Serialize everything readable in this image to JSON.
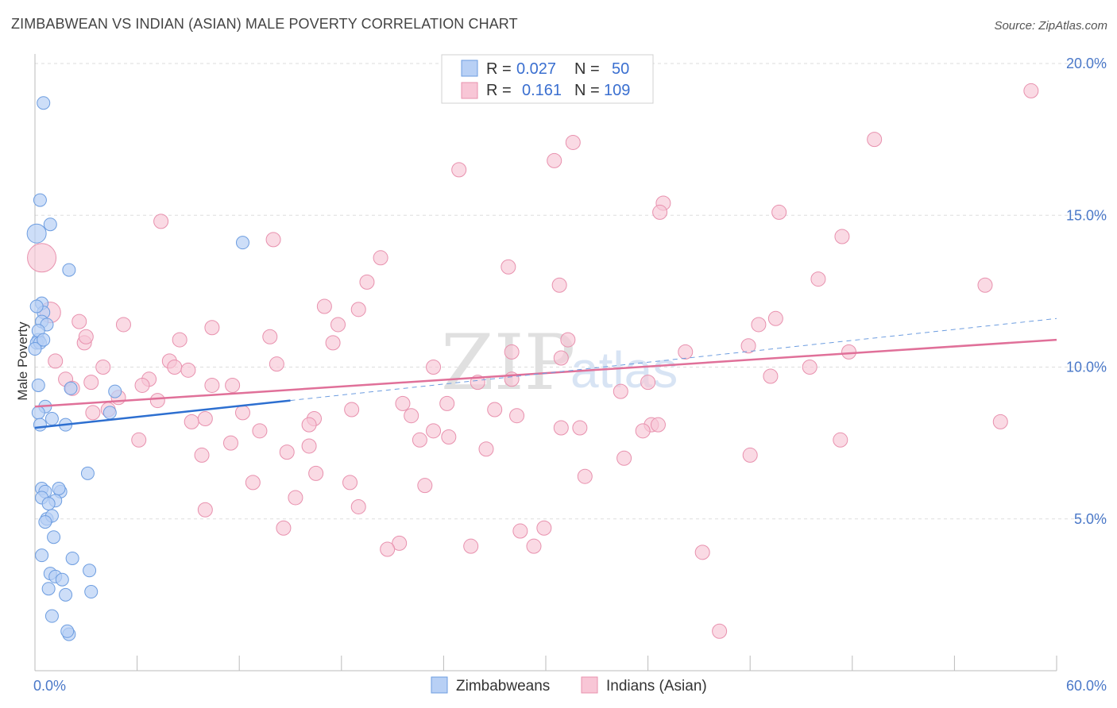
{
  "title": "ZIMBABWEAN VS INDIAN (ASIAN) MALE POVERTY CORRELATION CHART",
  "source": "Source: ZipAtlas.com",
  "watermark": {
    "zip": "ZIP",
    "atlas": "atlas"
  },
  "legend": {
    "r_label": "R =",
    "n_label": "N =",
    "rows": [
      {
        "r": "0.027",
        "n": "50",
        "fill": "#b8d0f5",
        "stroke": "#6d9de0"
      },
      {
        "r": "0.161",
        "n": "109",
        "fill": "#f8c6d6",
        "stroke": "#e891ae"
      }
    ]
  },
  "bottom_legend": [
    "Zimbabweans",
    "Indians (Asian)"
  ],
  "chart_data": {
    "type": "scatter",
    "title": "ZIMBABWEAN VS INDIAN (ASIAN) MALE POVERTY CORRELATION CHART",
    "xlabel": "",
    "ylabel": "Male Poverty",
    "xlim": [
      0,
      60
    ],
    "ylim": [
      0,
      20
    ],
    "x_tick_labels": [
      "0.0%",
      "60.0%"
    ],
    "y_ticks": [
      5,
      10,
      15,
      20
    ],
    "y_tick_labels": [
      "5.0%",
      "10.0%",
      "15.0%",
      "20.0%"
    ],
    "grid": true,
    "series": [
      {
        "name": "Zimbabweans",
        "color": "#6d9de0",
        "fill": "#b8d0f5",
        "trend_solid": [
          [
            0,
            8.0
          ],
          [
            15,
            8.9
          ]
        ],
        "trend_dashed": [
          [
            15,
            8.9
          ],
          [
            60,
            11.6
          ]
        ],
        "points": [
          [
            0.5,
            18.7
          ],
          [
            0.3,
            15.5
          ],
          [
            0.9,
            14.7
          ],
          [
            0.1,
            14.4
          ],
          [
            2.0,
            13.2
          ],
          [
            12.2,
            14.1
          ],
          [
            0.4,
            12.1
          ],
          [
            0.5,
            11.8
          ],
          [
            0.4,
            11.5
          ],
          [
            0.7,
            11.4
          ],
          [
            0.2,
            10.9
          ],
          [
            0.1,
            10.8
          ],
          [
            0.3,
            10.8
          ],
          [
            0.0,
            10.6
          ],
          [
            0.2,
            9.4
          ],
          [
            2.1,
            9.3
          ],
          [
            4.7,
            9.2
          ],
          [
            0.6,
            8.7
          ],
          [
            4.4,
            8.5
          ],
          [
            0.2,
            8.5
          ],
          [
            1.0,
            8.3
          ],
          [
            1.8,
            8.1
          ],
          [
            0.3,
            8.1
          ],
          [
            3.1,
            6.5
          ],
          [
            0.4,
            6.0
          ],
          [
            0.6,
            5.9
          ],
          [
            1.5,
            5.9
          ],
          [
            0.4,
            5.7
          ],
          [
            1.2,
            5.6
          ],
          [
            0.8,
            5.5
          ],
          [
            0.7,
            5.0
          ],
          [
            1.0,
            5.1
          ],
          [
            1.1,
            4.4
          ],
          [
            0.4,
            3.8
          ],
          [
            2.2,
            3.7
          ],
          [
            0.9,
            3.2
          ],
          [
            1.2,
            3.1
          ],
          [
            1.6,
            3.0
          ],
          [
            0.8,
            2.7
          ],
          [
            1.8,
            2.5
          ],
          [
            1.0,
            1.8
          ],
          [
            3.2,
            3.3
          ],
          [
            3.3,
            2.6
          ],
          [
            2.0,
            1.2
          ],
          [
            1.9,
            1.3
          ],
          [
            0.1,
            12.0
          ],
          [
            0.2,
            11.2
          ],
          [
            0.5,
            10.9
          ],
          [
            1.4,
            6.0
          ],
          [
            0.6,
            4.9
          ]
        ]
      },
      {
        "name": "Indians (Asian)",
        "color": "#e07099",
        "fill": "#f8c6d6",
        "trend": [
          [
            0,
            8.7
          ],
          [
            60,
            10.9
          ]
        ],
        "points": [
          [
            58.5,
            19.1
          ],
          [
            24.9,
            16.5
          ],
          [
            31.6,
            17.4
          ],
          [
            30.5,
            16.8
          ],
          [
            49.3,
            17.5
          ],
          [
            36.9,
            15.4
          ],
          [
            36.7,
            15.1
          ],
          [
            43.7,
            15.1
          ],
          [
            7.4,
            14.8
          ],
          [
            14.0,
            14.2
          ],
          [
            47.4,
            14.3
          ],
          [
            20.3,
            13.6
          ],
          [
            27.8,
            13.3
          ],
          [
            46.0,
            12.9
          ],
          [
            19.5,
            12.8
          ],
          [
            30.8,
            12.7
          ],
          [
            55.8,
            12.7
          ],
          [
            17.0,
            12.0
          ],
          [
            19.0,
            11.9
          ],
          [
            2.6,
            11.5
          ],
          [
            5.2,
            11.4
          ],
          [
            10.4,
            11.3
          ],
          [
            17.8,
            11.4
          ],
          [
            42.5,
            11.4
          ],
          [
            43.5,
            11.6
          ],
          [
            13.8,
            11.0
          ],
          [
            8.5,
            10.9
          ],
          [
            17.5,
            10.8
          ],
          [
            2.9,
            10.8
          ],
          [
            31.3,
            10.9
          ],
          [
            38.2,
            10.5
          ],
          [
            41.9,
            10.7
          ],
          [
            28.0,
            10.5
          ],
          [
            47.8,
            10.5
          ],
          [
            30.9,
            10.3
          ],
          [
            1.2,
            10.2
          ],
          [
            7.9,
            10.2
          ],
          [
            8.2,
            10.0
          ],
          [
            4.0,
            10.0
          ],
          [
            14.2,
            10.1
          ],
          [
            23.4,
            10.0
          ],
          [
            9.0,
            9.9
          ],
          [
            1.8,
            9.6
          ],
          [
            45.5,
            10.0
          ],
          [
            6.7,
            9.6
          ],
          [
            43.2,
            9.7
          ],
          [
            3.3,
            9.5
          ],
          [
            11.6,
            9.4
          ],
          [
            6.3,
            9.4
          ],
          [
            10.4,
            9.4
          ],
          [
            26.0,
            9.5
          ],
          [
            36.0,
            9.5
          ],
          [
            28.0,
            9.6
          ],
          [
            2.2,
            9.3
          ],
          [
            4.9,
            9.0
          ],
          [
            7.2,
            8.9
          ],
          [
            34.4,
            9.2
          ],
          [
            21.6,
            8.8
          ],
          [
            3.4,
            8.5
          ],
          [
            4.3,
            8.6
          ],
          [
            12.2,
            8.5
          ],
          [
            18.6,
            8.6
          ],
          [
            24.2,
            8.8
          ],
          [
            27.0,
            8.6
          ],
          [
            28.3,
            8.4
          ],
          [
            16.4,
            8.3
          ],
          [
            9.2,
            8.2
          ],
          [
            10.0,
            8.3
          ],
          [
            16.1,
            8.1
          ],
          [
            22.1,
            8.4
          ],
          [
            36.2,
            8.1
          ],
          [
            56.7,
            8.2
          ],
          [
            13.2,
            7.9
          ],
          [
            6.1,
            7.6
          ],
          [
            11.5,
            7.5
          ],
          [
            22.6,
            7.6
          ],
          [
            23.4,
            7.9
          ],
          [
            24.3,
            7.7
          ],
          [
            30.9,
            8.0
          ],
          [
            35.7,
            7.9
          ],
          [
            9.8,
            7.1
          ],
          [
            14.8,
            7.2
          ],
          [
            16.1,
            7.4
          ],
          [
            26.5,
            7.3
          ],
          [
            32.0,
            8.0
          ],
          [
            36.6,
            8.1
          ],
          [
            47.3,
            7.6
          ],
          [
            34.6,
            7.0
          ],
          [
            42.0,
            7.1
          ],
          [
            16.5,
            6.5
          ],
          [
            12.8,
            6.2
          ],
          [
            18.5,
            6.2
          ],
          [
            22.9,
            6.1
          ],
          [
            32.3,
            6.4
          ],
          [
            15.3,
            5.7
          ],
          [
            10.0,
            5.3
          ],
          [
            19.0,
            5.4
          ],
          [
            14.6,
            4.7
          ],
          [
            28.5,
            4.6
          ],
          [
            29.9,
            4.7
          ],
          [
            21.4,
            4.2
          ],
          [
            20.7,
            4.0
          ],
          [
            25.6,
            4.1
          ],
          [
            29.3,
            4.1
          ],
          [
            39.2,
            3.9
          ],
          [
            40.2,
            1.3
          ],
          [
            3.0,
            11.0
          ],
          [
            0.4,
            13.6
          ],
          [
            0.9,
            11.8
          ]
        ]
      }
    ]
  }
}
